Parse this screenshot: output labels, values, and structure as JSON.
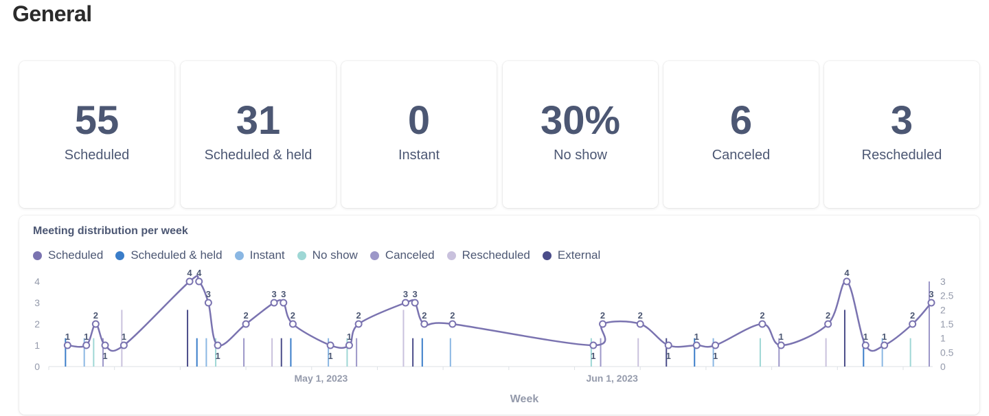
{
  "page": {
    "title": "General"
  },
  "cards": [
    {
      "value": "55",
      "label": "Scheduled"
    },
    {
      "value": "31",
      "label": "Scheduled & held"
    },
    {
      "value": "0",
      "label": "Instant"
    },
    {
      "value": "30%",
      "label": "No show"
    },
    {
      "value": "6",
      "label": "Canceled"
    },
    {
      "value": "3",
      "label": "Rescheduled"
    }
  ],
  "chart": {
    "title": "Meeting distribution per week"
  },
  "chart_data": {
    "type": "line",
    "xlabel": "Week",
    "x_tick_labels": [
      "May 1, 2023",
      "Jun 1, 2023"
    ],
    "y_left": {
      "ticks": [
        "0",
        "1",
        "2",
        "3",
        "4"
      ],
      "ylim": [
        0,
        4
      ]
    },
    "y_right": {
      "ticks": [
        "0",
        "0.5",
        "1",
        "1.5",
        "2",
        "2.5",
        "3"
      ],
      "ylim": [
        0,
        3
      ]
    },
    "legend_position": "top-left",
    "legend": [
      {
        "name": "Scheduled",
        "color": "#7a73b0"
      },
      {
        "name": "Scheduled & held",
        "color": "#3a7dc9"
      },
      {
        "name": "Instant",
        "color": "#8ab7e3"
      },
      {
        "name": "No show",
        "color": "#9ed7d5"
      },
      {
        "name": "Canceled",
        "color": "#9c97c8"
      },
      {
        "name": "Rescheduled",
        "color": "#c9c1dd"
      },
      {
        "name": "External",
        "color": "#4a4c89"
      }
    ],
    "series": [
      {
        "name": "Scheduled",
        "type": "line",
        "x_dates": [
          "2023-04-04",
          "2023-04-06",
          "2023-04-07",
          "2023-04-08",
          "2023-04-10",
          "2023-04-17",
          "2023-04-18",
          "2023-04-19",
          "2023-04-20",
          "2023-04-23",
          "2023-04-26",
          "2023-04-27",
          "2023-04-28",
          "2023-05-02",
          "2023-05-04",
          "2023-05-05",
          "2023-05-10",
          "2023-05-11",
          "2023-05-12",
          "2023-05-15",
          "2023-05-30",
          "2023-05-31",
          "2023-06-04",
          "2023-06-07",
          "2023-06-10",
          "2023-06-12",
          "2023-06-17",
          "2023-06-19",
          "2023-06-24",
          "2023-06-26",
          "2023-06-28",
          "2023-06-30",
          "2023-07-03",
          "2023-07-05"
        ],
        "values": [
          1,
          1,
          2,
          1,
          1,
          4,
          4,
          3,
          1,
          2,
          3,
          3,
          2,
          1,
          1,
          2,
          3,
          3,
          2,
          2,
          1,
          2,
          2,
          1,
          1,
          1,
          2,
          1,
          2,
          4,
          1,
          1,
          2,
          3
        ]
      }
    ],
    "bar_colors": [
      "#3a7dc9",
      "#8ab7e3",
      "#9ed7d5",
      "#9c97c8",
      "#c9c1dd",
      "#4a4c89"
    ]
  }
}
